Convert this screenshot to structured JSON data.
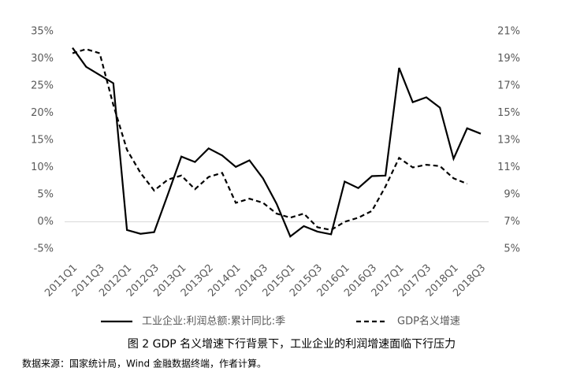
{
  "chart_data": {
    "type": "line",
    "categories": [
      "2011Q1",
      null,
      "2011Q3",
      null,
      "2012Q1",
      null,
      "2012Q3",
      null,
      "2013Q1",
      null,
      "2013Q2",
      null,
      "2014Q1",
      null,
      "2014Q3",
      null,
      "2015Q1",
      null,
      "2015Q3",
      null,
      "2016Q1",
      null,
      "2016Q3",
      null,
      "2017Q1",
      null,
      "2017Q3",
      null,
      "2018Q1",
      null,
      "2018Q3"
    ],
    "series": [
      {
        "name": "工业企业:利润总额:累计同比:季",
        "color": "#000000",
        "dash": "solid",
        "values": [
          32,
          28.5,
          27,
          25.5,
          -1.5,
          -2.2,
          -1.9,
          5,
          12,
          11,
          13.5,
          12.2,
          10.1,
          11.3,
          8,
          3.3,
          -2.7,
          -0.8,
          -1.8,
          -2.3,
          7.4,
          6.2,
          8.4,
          8.5,
          28.3,
          22,
          22.9,
          21,
          11.6,
          17.2,
          16.2
        ]
      },
      {
        "name": "GDP名义增速",
        "color": "#000000",
        "dash": "dashed",
        "axis": "y2",
        "values": [
          19.4,
          19.7,
          19.4,
          15.6,
          12.3,
          10.6,
          9.3,
          10.1,
          10.4,
          9.4,
          10.3,
          10.6,
          8.4,
          8.7,
          8.4,
          7.6,
          7.3,
          7.6,
          6.6,
          6.4,
          7.0,
          7.3,
          7.8,
          9.6,
          11.7,
          11.0,
          11.2,
          11.1,
          10.2,
          9.8,
          null
        ]
      }
    ],
    "ylim": [
      -5,
      35
    ],
    "yticks": [
      {
        "value": -5,
        "label": "-5%"
      },
      {
        "value": 0,
        "label": "0%"
      },
      {
        "value": 5,
        "label": "5%"
      },
      {
        "value": 10,
        "label": "10%"
      },
      {
        "value": 15,
        "label": "15%"
      },
      {
        "value": 20,
        "label": "20%"
      },
      {
        "value": 25,
        "label": "25%"
      },
      {
        "value": 30,
        "label": "30%"
      },
      {
        "value": 35,
        "label": "35%"
      }
    ],
    "y2lim": [
      5,
      21
    ],
    "y2ticks": [
      {
        "value": 5,
        "label": "5%"
      },
      {
        "value": 7,
        "label": "7%"
      },
      {
        "value": 9,
        "label": "9%"
      },
      {
        "value": 11,
        "label": "11%"
      },
      {
        "value": 13,
        "label": "13%"
      },
      {
        "value": 15,
        "label": "15%"
      },
      {
        "value": 17,
        "label": "17%"
      },
      {
        "value": 19,
        "label": "19%"
      },
      {
        "value": 21,
        "label": "21%"
      }
    ],
    "grid": false,
    "legend": "bottom",
    "caption": "图 2 GDP 名义增速下行背景下，工业企业的利润增速面临下行压力",
    "source": "数据来源：国家统计局，Wind 金融数据终端，作者计算。"
  }
}
